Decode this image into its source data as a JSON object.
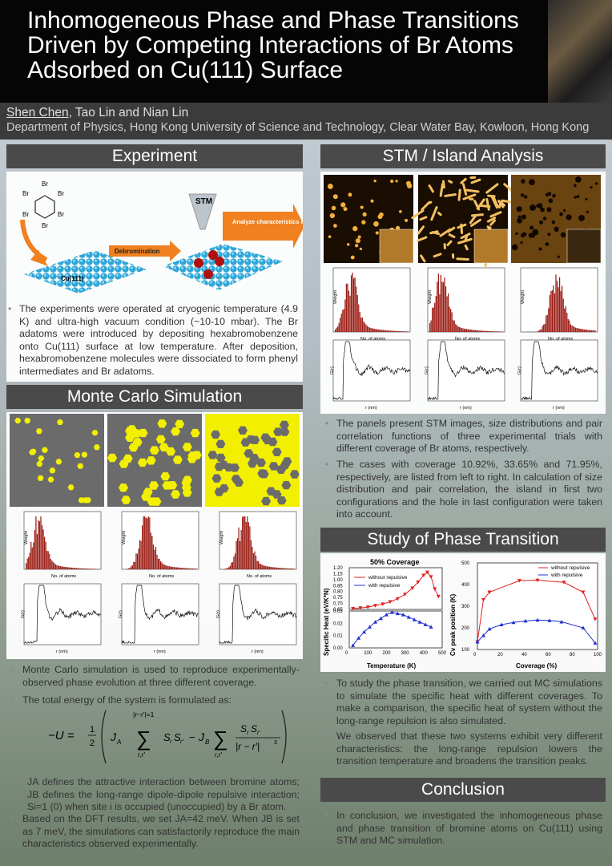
{
  "title": "Inhomogeneous Phase and Phase Transitions Driven by Competing Interactions of Br Atoms Adsorbed on Cu(111) Surface",
  "authors": {
    "presenter": "Shen Chen",
    "rest": ", Tao Lin and Nian Lin"
  },
  "affiliation": "Department of Physics, Hong Kong University of  Science and Technology, Clear Water Bay, Kowloon, Hong Kong",
  "sections": {
    "experiment": "Experiment",
    "stm": "STM / Island Analysis",
    "mc": "Monte Carlo Simulation",
    "phase": "Study of Phase Transition",
    "conclusion": "Conclusion"
  },
  "experiment_fig": {
    "br": "Br",
    "stm": "STM",
    "analyze": "Analyze characteristics of island",
    "debromination": "Debromination",
    "cu": "Cu(111)"
  },
  "experiment_text": "The experiments were operated at cryogenic temperature (4.9 K) and ultra-high vacuum condition (~10-10 mbar). The Br adatoms were introduced by depositing hexabromobenzene onto Cu(111) surface at low temperature. After deposition, hexabromobenzene molecules were dissociated to form phenyl intermediates and Br adatoms.",
  "stm_text": [
    "The panels present STM images, size distributions and pair correlation functions of three experimental trials with different coverage of Br atoms, respectively.",
    "The cases with coverage 10.92%, 33.65% and 71.95%, respectively, are listed from left to right. In calculation of size distribution and pair correlation, the island in first two configurations and the hole in last configuration were taken into account."
  ],
  "mc_text": [
    "Monte Carlo simulation is used to reproduce experimentally-observed phase evolution at three different coverage.",
    "The total energy of the system is formulated as:",
    "JA defines the attractive interaction between bromine atoms; JB defines the long-range dipole-dipole repulsive interaction; Si=1 (0) when site i is occupied (unoccupied) by a Br atom.",
    "Based on the DFT results, we set JA=42 meV. When JB is set as 7 meV, the simulations can satisfactorily reproduce the main characteristics observed experimentally."
  ],
  "formula": {
    "lhs": "−U =",
    "half_num": "1",
    "half_den": "2",
    "ja": "J",
    "ja_sub": "A",
    "sum1_top": "|r−r′|=1",
    "sum1_bot": "r,r′",
    "term1": "S",
    "jb": "J",
    "jb_sub": "B",
    "sum2_bot": "r,r′",
    "frac_num": "S",
    "frac_den": "|r − r′|",
    "minus": "−",
    "sigma": "∑",
    "sub_r": "r",
    "sub_rp": "r′",
    "pow3": "3"
  },
  "phase_text": [
    "To study the phase transition, we carried out MC simulations to simulate the specific heat with different coverages. To make a comparison, the specific heat of system without the long-range repulsion is also simulated.",
    "We observed that these two systems exhibit very different characteristics: the long-range repulsion lowers the transition temperature and broadens the transition peaks."
  ],
  "conclusion_text": "In conclusion, we investigated the inhomogeneous phase and phase transition of bromine atoms on Cu(111) using STM and MC simulation.",
  "hist_labels": {
    "ylabel": "Weight",
    "xlabel": "No. of atoms",
    "gr_ylabel": "G(r)",
    "gr_xlabel": "r (nm)"
  },
  "chart_data": [
    {
      "type": "line",
      "title": "50% Coverage",
      "xlabel": "Temperature (K)",
      "ylabel": "Specific Heat (eV/K*N)",
      "xlim": [
        0,
        500
      ],
      "xticks": [
        "0",
        "100",
        "200",
        "300",
        "400",
        "500"
      ],
      "top_panel": {
        "ylim": [
          0.65,
          1.2
        ],
        "yticks": [
          "1.20",
          "1.15",
          "1.00",
          "0.85",
          "0.80",
          "0.75",
          "0.70",
          "0.65"
        ],
        "series": [
          {
            "name": "without repulsive",
            "color": "#e02020",
            "x": [
              20,
              60,
              100,
              140,
              180,
              220,
              260,
              300,
              340,
              370,
              400,
              420,
              440,
              460,
              480
            ],
            "y": [
              0.66,
              0.67,
              0.68,
              0.7,
              0.72,
              0.75,
              0.79,
              0.85,
              0.93,
              1.01,
              1.1,
              1.14,
              1.08,
              0.92,
              0.82
            ]
          }
        ]
      },
      "bottom_panel": {
        "ylim": [
          0,
          0.03
        ],
        "yticks": [
          "0.03",
          "0.02",
          "0.01",
          "0.00"
        ],
        "series": [
          {
            "name": "with repulsive",
            "color": "#2030d0",
            "x": [
              20,
              50,
              80,
              110,
              140,
              170,
              200,
              230,
              260,
              290,
              320,
              350,
              380,
              410,
              440
            ],
            "y": [
              0.002,
              0.008,
              0.013,
              0.017,
              0.021,
              0.024,
              0.027,
              0.029,
              0.028,
              0.027,
              0.025,
              0.023,
              0.021,
              0.019,
              0.017
            ]
          }
        ]
      }
    },
    {
      "type": "line",
      "xlabel": "Coverage (%)",
      "ylabel": "Cv peak position (K)",
      "xlim": [
        0,
        100
      ],
      "ylim": [
        100,
        500
      ],
      "xticks": [
        "0",
        "20",
        "40",
        "60",
        "80",
        "100"
      ],
      "yticks": [
        "500",
        "400",
        "300",
        "200",
        "100"
      ],
      "series": [
        {
          "name": "without repulsive",
          "color": "#e02020",
          "x": [
            0,
            5,
            10,
            35,
            50,
            72,
            88,
            98
          ],
          "y": [
            135,
            330,
            365,
            418,
            420,
            410,
            365,
            240
          ]
        },
        {
          "name": "with repulsive",
          "color": "#2030d0",
          "x": [
            0,
            5,
            10,
            20,
            30,
            40,
            50,
            60,
            70,
            88,
            98
          ],
          "y": [
            135,
            165,
            195,
            215,
            225,
            232,
            236,
            234,
            228,
            200,
            130
          ]
        }
      ]
    }
  ]
}
